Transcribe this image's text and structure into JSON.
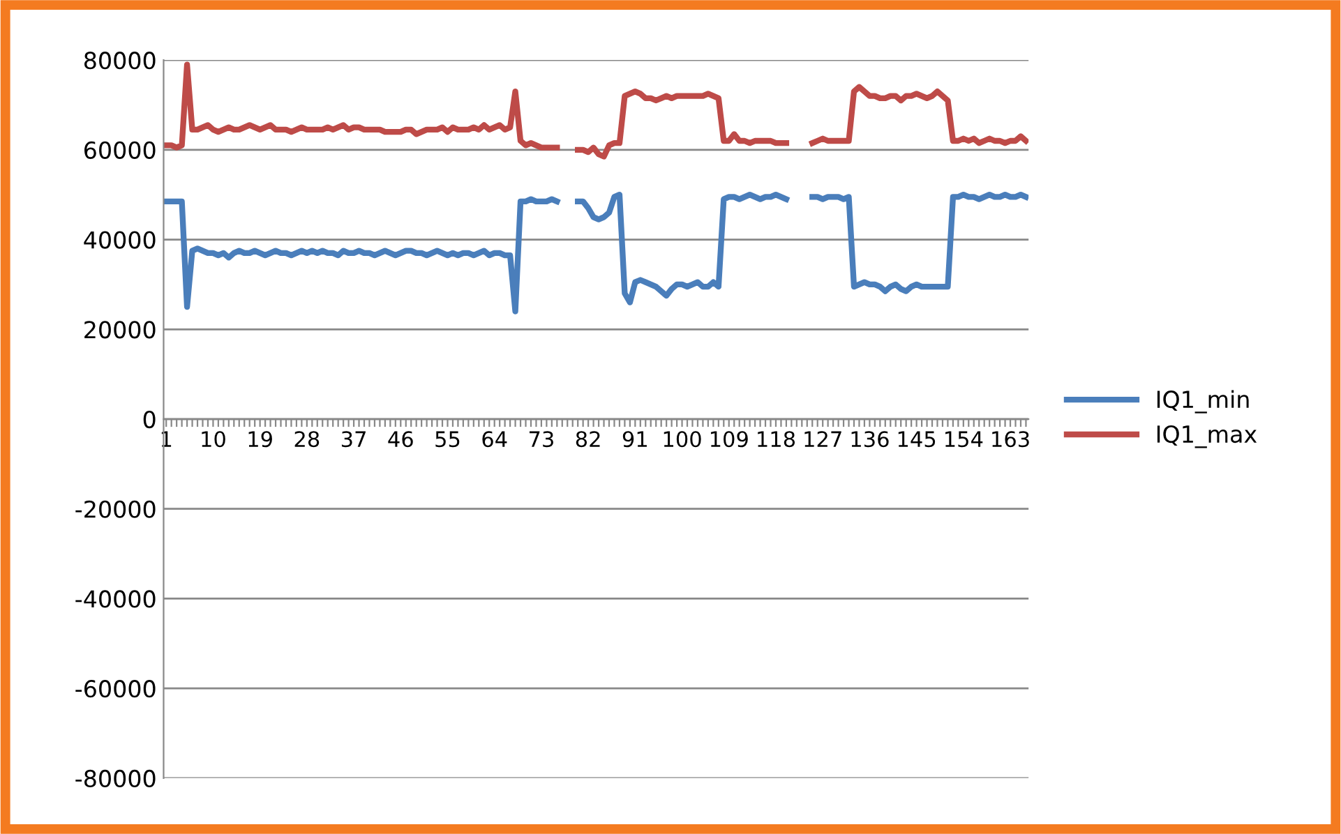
{
  "chart_data": {
    "type": "line",
    "categories": [
      "1",
      null,
      null,
      null,
      null,
      null,
      null,
      null,
      null,
      "10",
      null,
      null,
      null,
      null,
      null,
      null,
      null,
      null,
      "19",
      null,
      null,
      null,
      null,
      null,
      null,
      null,
      null,
      "28",
      null,
      null,
      null,
      null,
      null,
      null,
      null,
      null,
      "37",
      null,
      null,
      null,
      null,
      null,
      null,
      null,
      null,
      "46",
      null,
      null,
      null,
      null,
      null,
      null,
      null,
      null,
      "55",
      null,
      null,
      null,
      null,
      null,
      null,
      null,
      null,
      "64",
      null,
      null,
      null,
      null,
      null,
      null,
      null,
      null,
      "73",
      null,
      null,
      null,
      null,
      null,
      null,
      null,
      null,
      "82",
      null,
      null,
      null,
      null,
      null,
      null,
      null,
      null,
      "91",
      null,
      null,
      null,
      null,
      null,
      null,
      null,
      null,
      "100",
      null,
      null,
      null,
      null,
      null,
      null,
      null,
      null,
      "109",
      null,
      null,
      null,
      null,
      null,
      null,
      null,
      null,
      "118",
      null,
      null,
      null,
      null,
      null,
      null,
      null,
      null,
      "127",
      null,
      null,
      null,
      null,
      null,
      null,
      null,
      null,
      "136",
      null,
      null,
      null,
      null,
      null,
      null,
      null,
      null,
      "145",
      null,
      null,
      null,
      null,
      null,
      null,
      null,
      null,
      "154",
      null,
      null,
      null,
      null,
      null,
      null,
      null,
      null,
      "163",
      null,
      null,
      null
    ],
    "series": [
      {
        "name": "IQ1_min",
        "color": "#4a7ebb",
        "values": [
          48500,
          48500,
          48500,
          48500,
          25000,
          37500,
          38000,
          37500,
          37000,
          37000,
          36500,
          37000,
          36000,
          37000,
          37500,
          37000,
          37000,
          37500,
          37000,
          36500,
          37000,
          37500,
          37000,
          37000,
          36500,
          37000,
          37500,
          37000,
          37500,
          37000,
          37500,
          37000,
          37000,
          36500,
          37500,
          37000,
          37000,
          37500,
          37000,
          37000,
          36500,
          37000,
          37500,
          37000,
          36500,
          37000,
          37500,
          37500,
          37000,
          37000,
          36500,
          37000,
          37500,
          37000,
          36500,
          37000,
          36500,
          37000,
          37000,
          36500,
          37000,
          37500,
          36500,
          37000,
          37000,
          36500,
          36500,
          24000,
          48500,
          48500,
          49000,
          48500,
          48500,
          48500,
          49000,
          48500,
          null,
          null,
          null,
          48500,
          48500,
          47000,
          45000,
          44500,
          45000,
          46000,
          49500,
          50000,
          28000,
          26000,
          30500,
          31000,
          30500,
          30000,
          29500,
          28500,
          27500,
          29000,
          30000,
          30000,
          29500,
          30000,
          30500,
          29500,
          29500,
          30500,
          29500,
          49000,
          49500,
          49500,
          49000,
          49500,
          50000,
          49500,
          49000,
          49500,
          49500,
          50000,
          49500,
          49000,
          null,
          null,
          null,
          null,
          49500,
          49500,
          49000,
          49500,
          49500,
          49500,
          49000,
          49500,
          29500,
          30000,
          30500,
          30000,
          30000,
          29500,
          28500,
          29500,
          30000,
          29000,
          28500,
          29500,
          30000,
          29500,
          29500,
          29500,
          29500,
          29500,
          29500,
          49500,
          49500,
          50000,
          49500,
          49500,
          49000,
          49500,
          50000,
          49500,
          49500,
          50000,
          49500,
          49500,
          50000,
          49500
        ]
      },
      {
        "name": "IQ1_max",
        "color": "#be4b48",
        "values": [
          61000,
          61000,
          60500,
          61000,
          79000,
          64500,
          64500,
          65000,
          65500,
          64500,
          64000,
          64500,
          65000,
          64500,
          64500,
          65000,
          65500,
          65000,
          64500,
          65000,
          65500,
          64500,
          64500,
          64500,
          64000,
          64500,
          65000,
          64500,
          64500,
          64500,
          64500,
          65000,
          64500,
          65000,
          65500,
          64500,
          65000,
          65000,
          64500,
          64500,
          64500,
          64500,
          64000,
          64000,
          64000,
          64000,
          64500,
          64500,
          63500,
          64000,
          64500,
          64500,
          64500,
          65000,
          64000,
          65000,
          64500,
          64500,
          64500,
          65000,
          64500,
          65500,
          64500,
          65000,
          65500,
          64500,
          65000,
          73000,
          62000,
          61000,
          61500,
          61000,
          60500,
          60500,
          60500,
          60500,
          null,
          null,
          null,
          60000,
          60000,
          59500,
          60500,
          59000,
          58500,
          61000,
          61500,
          61500,
          72000,
          72500,
          73000,
          72500,
          71500,
          71500,
          71000,
          71500,
          72000,
          71500,
          72000,
          72000,
          72000,
          72000,
          72000,
          72000,
          72500,
          72000,
          71500,
          62000,
          62000,
          63500,
          62000,
          62000,
          61500,
          62000,
          62000,
          62000,
          62000,
          61500,
          61500,
          61500,
          null,
          null,
          null,
          null,
          61500,
          62000,
          62500,
          62000,
          62000,
          62000,
          62000,
          62000,
          73000,
          74000,
          73000,
          72000,
          72000,
          71500,
          71500,
          72000,
          72000,
          71000,
          72000,
          72000,
          72500,
          72000,
          71500,
          72000,
          73000,
          72000,
          71000,
          62000,
          62000,
          62500,
          62000,
          62500,
          61500,
          62000,
          62500,
          62000,
          62000,
          61500,
          62000,
          62000,
          63000,
          62000
        ]
      }
    ],
    "ylim": [
      -80000,
      80000
    ],
    "yticks": [
      -80000,
      -60000,
      -40000,
      -20000,
      0,
      20000,
      40000,
      60000,
      80000
    ],
    "grid": "y",
    "legend": "right",
    "marker": "none",
    "line_style": "solid"
  }
}
